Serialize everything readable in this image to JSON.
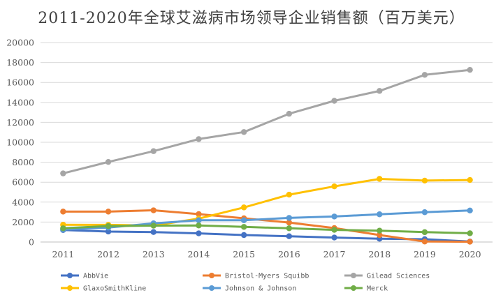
{
  "chart_data": {
    "type": "line",
    "title": "2011-2020年全球艾滋病市场领导企业销售额（百万美元）",
    "xlabel": "",
    "ylabel": "",
    "x": [
      "2011",
      "2012",
      "2013",
      "2014",
      "2015",
      "2016",
      "2017",
      "2018",
      "2019",
      "2020"
    ],
    "ylim": [
      0,
      20000
    ],
    "yticks": [
      "0",
      "2000",
      "4000",
      "6000",
      "8000",
      "10000",
      "12000",
      "14000",
      "16000",
      "18000",
      "20000"
    ],
    "grid": true,
    "legend_position": "bottom",
    "series": [
      {
        "name": "AbbVie",
        "color": "#4472C4",
        "values": [
          1200,
          1050,
          1000,
          870,
          700,
          580,
          450,
          330,
          280,
          50
        ]
      },
      {
        "name": "Bristol-Myers Squibb",
        "color": "#ED7D31",
        "values": [
          3050,
          3050,
          3180,
          2800,
          2380,
          1950,
          1400,
          700,
          50,
          30
        ]
      },
      {
        "name": "Gilead Sciences",
        "color": "#A5A5A5",
        "values": [
          6880,
          8030,
          9110,
          10320,
          11030,
          12860,
          14160,
          15150,
          16760,
          17260
        ]
      },
      {
        "name": "GlaxoSmithKline",
        "color": "#FFC000",
        "values": [
          1730,
          1720,
          1650,
          2350,
          3470,
          4750,
          5580,
          6330,
          6160,
          6220
        ]
      },
      {
        "name": "Johnson & Johnson",
        "color": "#5B9BD5",
        "values": [
          1250,
          1450,
          1870,
          2180,
          2180,
          2420,
          2560,
          2780,
          2990,
          3160
        ]
      },
      {
        "name": "Merck",
        "color": "#70AD47",
        "values": [
          1380,
          1600,
          1640,
          1660,
          1520,
          1380,
          1220,
          1140,
          990,
          880
        ]
      }
    ]
  }
}
